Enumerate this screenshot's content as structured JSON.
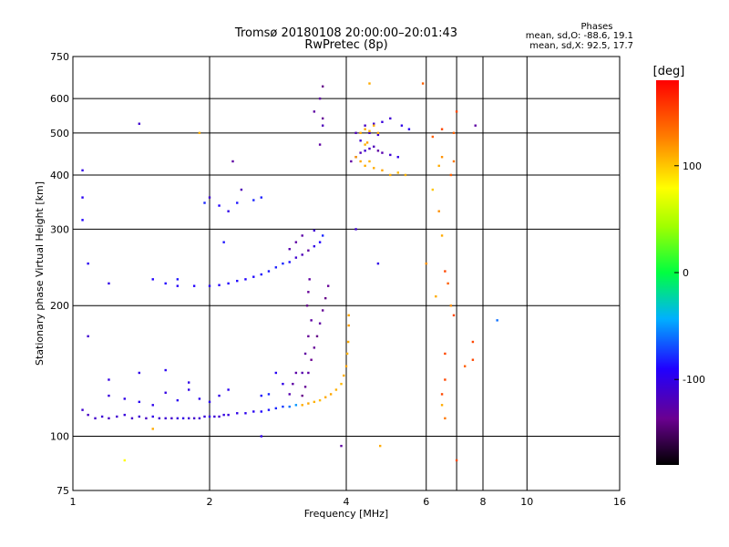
{
  "chart_data": {
    "type": "scatter",
    "title": "Tromsø 20180108 20:00:00–20:01:43",
    "subtitle": "RwPretec (8p)",
    "xlabel": "Frequency [MHz]",
    "ylabel": "Stationary phase Virtual Height [km]",
    "x_scale": "log",
    "y_scale": "log",
    "xlim": [
      1,
      16
    ],
    "ylim": [
      75,
      750
    ],
    "x_ticks": [
      1,
      2,
      4,
      6,
      8,
      10,
      16
    ],
    "y_ticks": [
      75,
      100,
      200,
      300,
      400,
      500,
      600,
      750
    ],
    "x_grid": [
      2,
      4,
      6,
      7,
      8,
      10
    ],
    "y_grid": [
      100,
      200,
      300,
      400,
      500,
      600
    ],
    "stats": {
      "heading": "Phases",
      "line1": "mean, sd,O: -88.6, 19.1",
      "line2": "mean, sd,X:  92.5, 17.7"
    },
    "colorbar": {
      "label": "[deg]",
      "min": -180,
      "max": 180,
      "ticks": [
        100,
        0,
        -100
      ]
    },
    "series": [
      {
        "name": "trace-lower",
        "points": [
          [
            1.05,
            115,
            -110
          ],
          [
            1.08,
            112,
            -115
          ],
          [
            1.12,
            110,
            -112
          ],
          [
            1.16,
            111,
            -108
          ],
          [
            1.2,
            110,
            -115
          ],
          [
            1.25,
            111,
            -110
          ],
          [
            1.3,
            112,
            -105
          ],
          [
            1.35,
            110,
            -112
          ],
          [
            1.4,
            111,
            -108
          ],
          [
            1.45,
            110,
            -115
          ],
          [
            1.5,
            111,
            -100
          ],
          [
            1.55,
            110,
            -110
          ],
          [
            1.6,
            110,
            -108
          ],
          [
            1.65,
            110,
            -112
          ],
          [
            1.7,
            110,
            -105
          ],
          [
            1.75,
            110,
            -100
          ],
          [
            1.8,
            110,
            -108
          ],
          [
            1.85,
            110,
            -112
          ],
          [
            1.9,
            110,
            -110
          ],
          [
            1.95,
            111,
            -105
          ],
          [
            2.0,
            111,
            -100
          ],
          [
            2.05,
            111,
            -108
          ],
          [
            2.1,
            111,
            -110
          ],
          [
            2.15,
            112,
            -102
          ],
          [
            2.2,
            112,
            -105
          ],
          [
            2.3,
            113,
            -100
          ],
          [
            2.4,
            113,
            -98
          ],
          [
            2.5,
            114,
            -95
          ],
          [
            2.6,
            114,
            -90
          ],
          [
            2.7,
            115,
            -85
          ],
          [
            2.8,
            116,
            -80
          ],
          [
            2.9,
            117,
            -75
          ],
          [
            3.0,
            117,
            -60
          ],
          [
            3.1,
            118,
            -50
          ]
        ]
      },
      {
        "name": "trace-lower-yellow",
        "points": [
          [
            3.2,
            118,
            110
          ],
          [
            3.3,
            119,
            112
          ],
          [
            3.4,
            120,
            108
          ],
          [
            3.5,
            121,
            105
          ],
          [
            3.6,
            123,
            110
          ],
          [
            3.7,
            125,
            112
          ],
          [
            3.8,
            128,
            108
          ],
          [
            3.9,
            132,
            105
          ],
          [
            3.95,
            138,
            110
          ],
          [
            4.0,
            145,
            112
          ],
          [
            4.02,
            155,
            108
          ],
          [
            4.04,
            165,
            110
          ],
          [
            4.05,
            180,
            115
          ],
          [
            4.05,
            190,
            112
          ]
        ]
      },
      {
        "name": "trace-lower-blue",
        "points": [
          [
            1.2,
            124,
            -105
          ],
          [
            1.3,
            122,
            -100
          ],
          [
            1.4,
            120,
            -95
          ],
          [
            1.5,
            118,
            -98
          ],
          [
            1.6,
            126,
            -102
          ],
          [
            1.7,
            121,
            -95
          ],
          [
            1.8,
            128,
            -100
          ],
          [
            1.9,
            122,
            -98
          ],
          [
            2.0,
            120,
            -96
          ],
          [
            2.1,
            124,
            -100
          ],
          [
            1.6,
            142,
            -96
          ],
          [
            1.8,
            133,
            -100
          ],
          [
            2.2,
            128,
            -95
          ],
          [
            1.4,
            140,
            -100
          ],
          [
            1.2,
            135,
            -102
          ]
        ]
      },
      {
        "name": "trace-lower-purple",
        "points": [
          [
            3.2,
            124,
            -140
          ],
          [
            3.25,
            130,
            -135
          ],
          [
            3.3,
            140,
            -130
          ],
          [
            3.35,
            150,
            -138
          ],
          [
            3.4,
            160,
            -135
          ],
          [
            3.45,
            170,
            -140
          ],
          [
            3.5,
            182,
            -130
          ],
          [
            3.55,
            195,
            -135
          ],
          [
            3.6,
            208,
            -140
          ],
          [
            3.65,
            222,
            -135
          ],
          [
            3.2,
            140,
            -125
          ],
          [
            3.25,
            155,
            -130
          ],
          [
            3.3,
            170,
            -135
          ],
          [
            3.35,
            185,
            -130
          ],
          [
            3.28,
            200,
            -140
          ],
          [
            3.3,
            215,
            -135
          ],
          [
            3.32,
            230,
            -130
          ],
          [
            3.0,
            125,
            -125
          ],
          [
            3.05,
            132,
            -130
          ],
          [
            3.1,
            140,
            -128
          ],
          [
            2.9,
            132,
            -100
          ],
          [
            2.8,
            140,
            -95
          ],
          [
            2.7,
            125,
            -80
          ],
          [
            2.6,
            124,
            -85
          ]
        ]
      },
      {
        "name": "trace-upper",
        "points": [
          [
            1.6,
            225,
            -90
          ],
          [
            1.7,
            222,
            -92
          ],
          [
            1.85,
            222,
            -90
          ],
          [
            2.0,
            222,
            -95
          ],
          [
            2.1,
            223,
            -92
          ],
          [
            2.2,
            225,
            -90
          ],
          [
            2.3,
            228,
            -88
          ],
          [
            2.4,
            230,
            -90
          ],
          [
            2.5,
            233,
            -88
          ],
          [
            2.6,
            236,
            -86
          ],
          [
            2.7,
            240,
            -84
          ],
          [
            2.8,
            245,
            -82
          ],
          [
            2.9,
            250,
            -80
          ],
          [
            3.0,
            252,
            -85
          ],
          [
            3.1,
            258,
            -110
          ],
          [
            3.2,
            262,
            -120
          ],
          [
            3.3,
            268,
            -130
          ],
          [
            3.4,
            274,
            -100
          ],
          [
            3.5,
            280,
            -90
          ],
          [
            3.55,
            290,
            -80
          ],
          [
            3.0,
            270,
            -125
          ],
          [
            3.1,
            280,
            -130
          ],
          [
            3.2,
            290,
            -128
          ],
          [
            3.4,
            298,
            -110
          ]
        ]
      },
      {
        "name": "trace-upper-cyan",
        "points": [
          [
            1.95,
            345,
            -80
          ],
          [
            2.1,
            340,
            -90
          ],
          [
            2.3,
            345,
            -85
          ],
          [
            2.5,
            350,
            -80
          ],
          [
            2.6,
            355,
            -82
          ],
          [
            2.2,
            330,
            -100
          ],
          [
            2.0,
            355,
            -110
          ]
        ]
      },
      {
        "name": "trace-high",
        "points": [
          [
            4.1,
            430,
            -130
          ],
          [
            4.2,
            440,
            -125
          ],
          [
            4.3,
            450,
            -120
          ],
          [
            4.4,
            455,
            -110
          ],
          [
            4.5,
            460,
            -115
          ],
          [
            4.6,
            465,
            -120
          ],
          [
            4.7,
            455,
            -130
          ],
          [
            4.8,
            450,
            -125
          ],
          [
            5.0,
            445,
            -110
          ],
          [
            5.2,
            440,
            -100
          ],
          [
            4.4,
            520,
            -115
          ],
          [
            4.6,
            525,
            -110
          ],
          [
            4.8,
            530,
            -105
          ],
          [
            5.0,
            540,
            -110
          ],
          [
            5.3,
            520,
            -100
          ],
          [
            5.5,
            510,
            -95
          ],
          [
            4.2,
            500,
            -120
          ],
          [
            4.3,
            480,
            -110
          ],
          [
            4.5,
            500,
            -115
          ],
          [
            4.7,
            495,
            -110
          ]
        ]
      },
      {
        "name": "trace-high-yellow",
        "points": [
          [
            4.2,
            440,
            115
          ],
          [
            4.3,
            430,
            112
          ],
          [
            4.4,
            420,
            110
          ],
          [
            4.5,
            430,
            108
          ],
          [
            4.6,
            415,
            110
          ],
          [
            4.8,
            410,
            112
          ],
          [
            5.0,
            400,
            110
          ],
          [
            5.2,
            405,
            105
          ],
          [
            5.4,
            400,
            108
          ],
          [
            4.3,
            500,
            110
          ],
          [
            4.4,
            510,
            112
          ],
          [
            4.5,
            505,
            108
          ],
          [
            4.6,
            520,
            110
          ],
          [
            4.7,
            500,
            112
          ],
          [
            4.4,
            470,
            108
          ],
          [
            4.5,
            650,
            110
          ],
          [
            4.45,
            475,
            115
          ]
        ]
      },
      {
        "name": "trace-high-purple",
        "points": [
          [
            3.4,
            560,
            -130
          ],
          [
            3.55,
            540,
            -135
          ],
          [
            3.55,
            520,
            -120
          ],
          [
            3.5,
            600,
            -130
          ],
          [
            3.55,
            640,
            -140
          ],
          [
            3.5,
            470,
            -130
          ]
        ]
      },
      {
        "name": "scatter-noise",
        "points": [
          [
            1.05,
            410,
            -100
          ],
          [
            1.05,
            355,
            -95
          ],
          [
            1.05,
            315,
            -90
          ],
          [
            1.08,
            250,
            -95
          ],
          [
            1.08,
            170,
            -110
          ],
          [
            1.2,
            225,
            -100
          ],
          [
            1.4,
            525,
            -110
          ],
          [
            1.5,
            230,
            -90
          ],
          [
            1.7,
            230,
            -85
          ],
          [
            1.9,
            500,
            110
          ],
          [
            1.3,
            88,
            80
          ],
          [
            1.5,
            104,
            110
          ],
          [
            2.35,
            370,
            -120
          ],
          [
            2.25,
            430,
            -130
          ],
          [
            2.15,
            280,
            -85
          ],
          [
            2.6,
            100,
            -100
          ],
          [
            3.9,
            95,
            -130
          ],
          [
            4.2,
            300,
            -110
          ],
          [
            4.7,
            250,
            -100
          ],
          [
            4.75,
            95,
            110
          ],
          [
            6.6,
            240,
            150
          ],
          [
            6.8,
            200,
            120
          ],
          [
            6.9,
            190,
            150
          ],
          [
            7.0,
            560,
            150
          ],
          [
            7.0,
            88,
            150
          ],
          [
            7.6,
            165,
            150
          ],
          [
            7.7,
            520,
            -130
          ],
          [
            8.6,
            185,
            -60
          ],
          [
            6.2,
            490,
            140
          ],
          [
            6.6,
            155,
            150
          ],
          [
            6.4,
            330,
            120
          ],
          [
            6.5,
            290,
            110
          ],
          [
            6.2,
            370,
            100
          ],
          [
            6.4,
            420,
            110
          ],
          [
            6.5,
            440,
            120
          ],
          [
            6.9,
            430,
            130
          ],
          [
            6.6,
            135,
            150
          ],
          [
            6.8,
            400,
            140
          ],
          [
            6.0,
            250,
            120
          ],
          [
            6.3,
            210,
            110
          ],
          [
            7.6,
            150,
            150
          ],
          [
            7.3,
            145,
            140
          ],
          [
            6.6,
            110,
            130
          ],
          [
            6.5,
            118,
            110
          ],
          [
            6.5,
            125,
            150
          ],
          [
            6.7,
            225,
            140
          ],
          [
            6.9,
            500,
            140
          ],
          [
            6.5,
            510,
            150
          ],
          [
            5.9,
            650,
            140
          ]
        ]
      }
    ]
  }
}
